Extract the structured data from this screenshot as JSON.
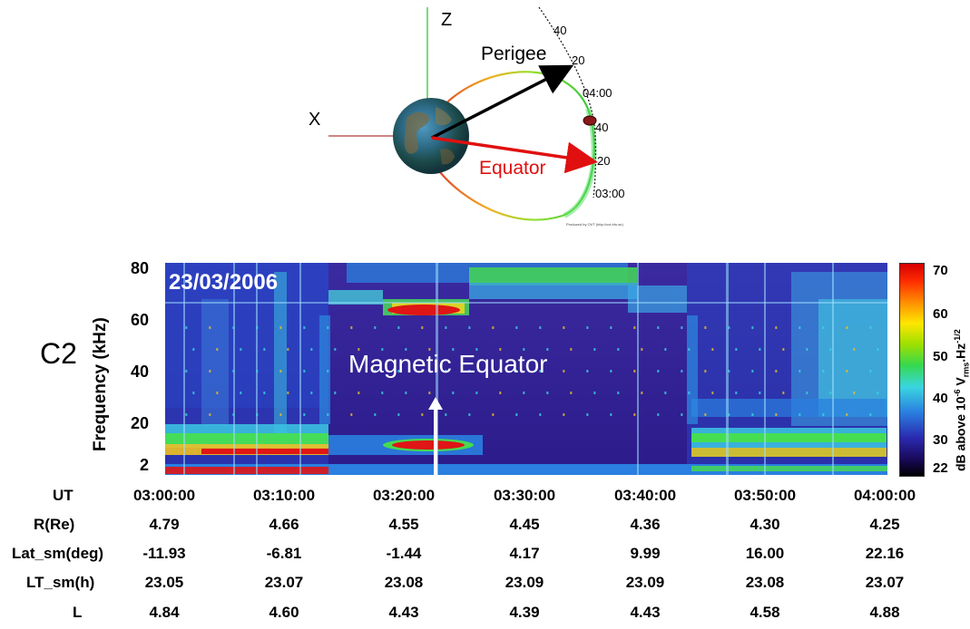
{
  "orbit": {
    "axis_z": "Z",
    "axis_x": "X",
    "perigee_label": "Perigee",
    "equator_label": "Equator",
    "ticks": [
      "40",
      "20",
      "04:00",
      "40",
      "20",
      "03:00"
    ],
    "credit": "Produced by OVT (http://ovt.irfu.se)"
  },
  "panel": {
    "spacecraft": "C2",
    "date": "23/03/2006",
    "annotation": "Magnetic Equator",
    "ylabel": "Frequency (kHz)",
    "yticks": [
      "80",
      "60",
      "40",
      "20",
      "2"
    ],
    "colorbar": {
      "label_main": "dB above 10",
      "label_sup": "-6",
      "label_units": " V",
      "label_sub": "rms",
      "label_tail": ".Hz",
      "label_tail_sup": "-1/2",
      "ticks": [
        "70",
        "60",
        "50",
        "40",
        "30",
        "22"
      ]
    }
  },
  "ephemeris": {
    "rows": [
      {
        "label": "UT",
        "values": [
          "03:00:00",
          "03:10:00",
          "03:20:00",
          "03:30:00",
          "03:40:00",
          "03:50:00",
          "04:00:00"
        ]
      },
      {
        "label": "R(Re)",
        "values": [
          "4.79",
          "4.66",
          "4.55",
          "4.45",
          "4.36",
          "4.30",
          "4.25"
        ]
      },
      {
        "label": "Lat_sm(deg)",
        "values": [
          "-11.93",
          "-6.81",
          "-1.44",
          "4.17",
          "9.99",
          "16.00",
          "22.16"
        ]
      },
      {
        "label": "LT_sm(h)",
        "values": [
          "23.05",
          "23.07",
          "23.08",
          "23.09",
          "23.09",
          "23.08",
          "23.07"
        ]
      },
      {
        "label": "L",
        "values": [
          "4.84",
          "4.60",
          "4.43",
          "4.39",
          "4.43",
          "4.58",
          "4.88"
        ]
      }
    ]
  },
  "chart_data": {
    "type": "heatmap",
    "title": "23/03/2006",
    "xlabel": "UT",
    "ylabel": "Frequency (kHz)",
    "x_ticks": [
      "03:00:00",
      "03:10:00",
      "03:20:00",
      "03:30:00",
      "03:40:00",
      "03:50:00",
      "04:00:00"
    ],
    "y_ticks": [
      80,
      60,
      40,
      20,
      2
    ],
    "ylim": [
      2,
      80
    ],
    "colorbar_range_db": [
      22,
      70
    ],
    "colorbar_ticks": [
      70,
      60,
      50,
      40,
      30,
      22
    ],
    "annotation": {
      "text": "Magnetic Equator",
      "time": "03:21:00"
    },
    "colors": {
      "background": "#3a1f9a",
      "low": "#1a0a5c",
      "mid_blue": "#2a7fe0",
      "cyan": "#3ad6e0",
      "green": "#47e04a",
      "yellow": "#f0e020",
      "red": "#e01515"
    }
  }
}
